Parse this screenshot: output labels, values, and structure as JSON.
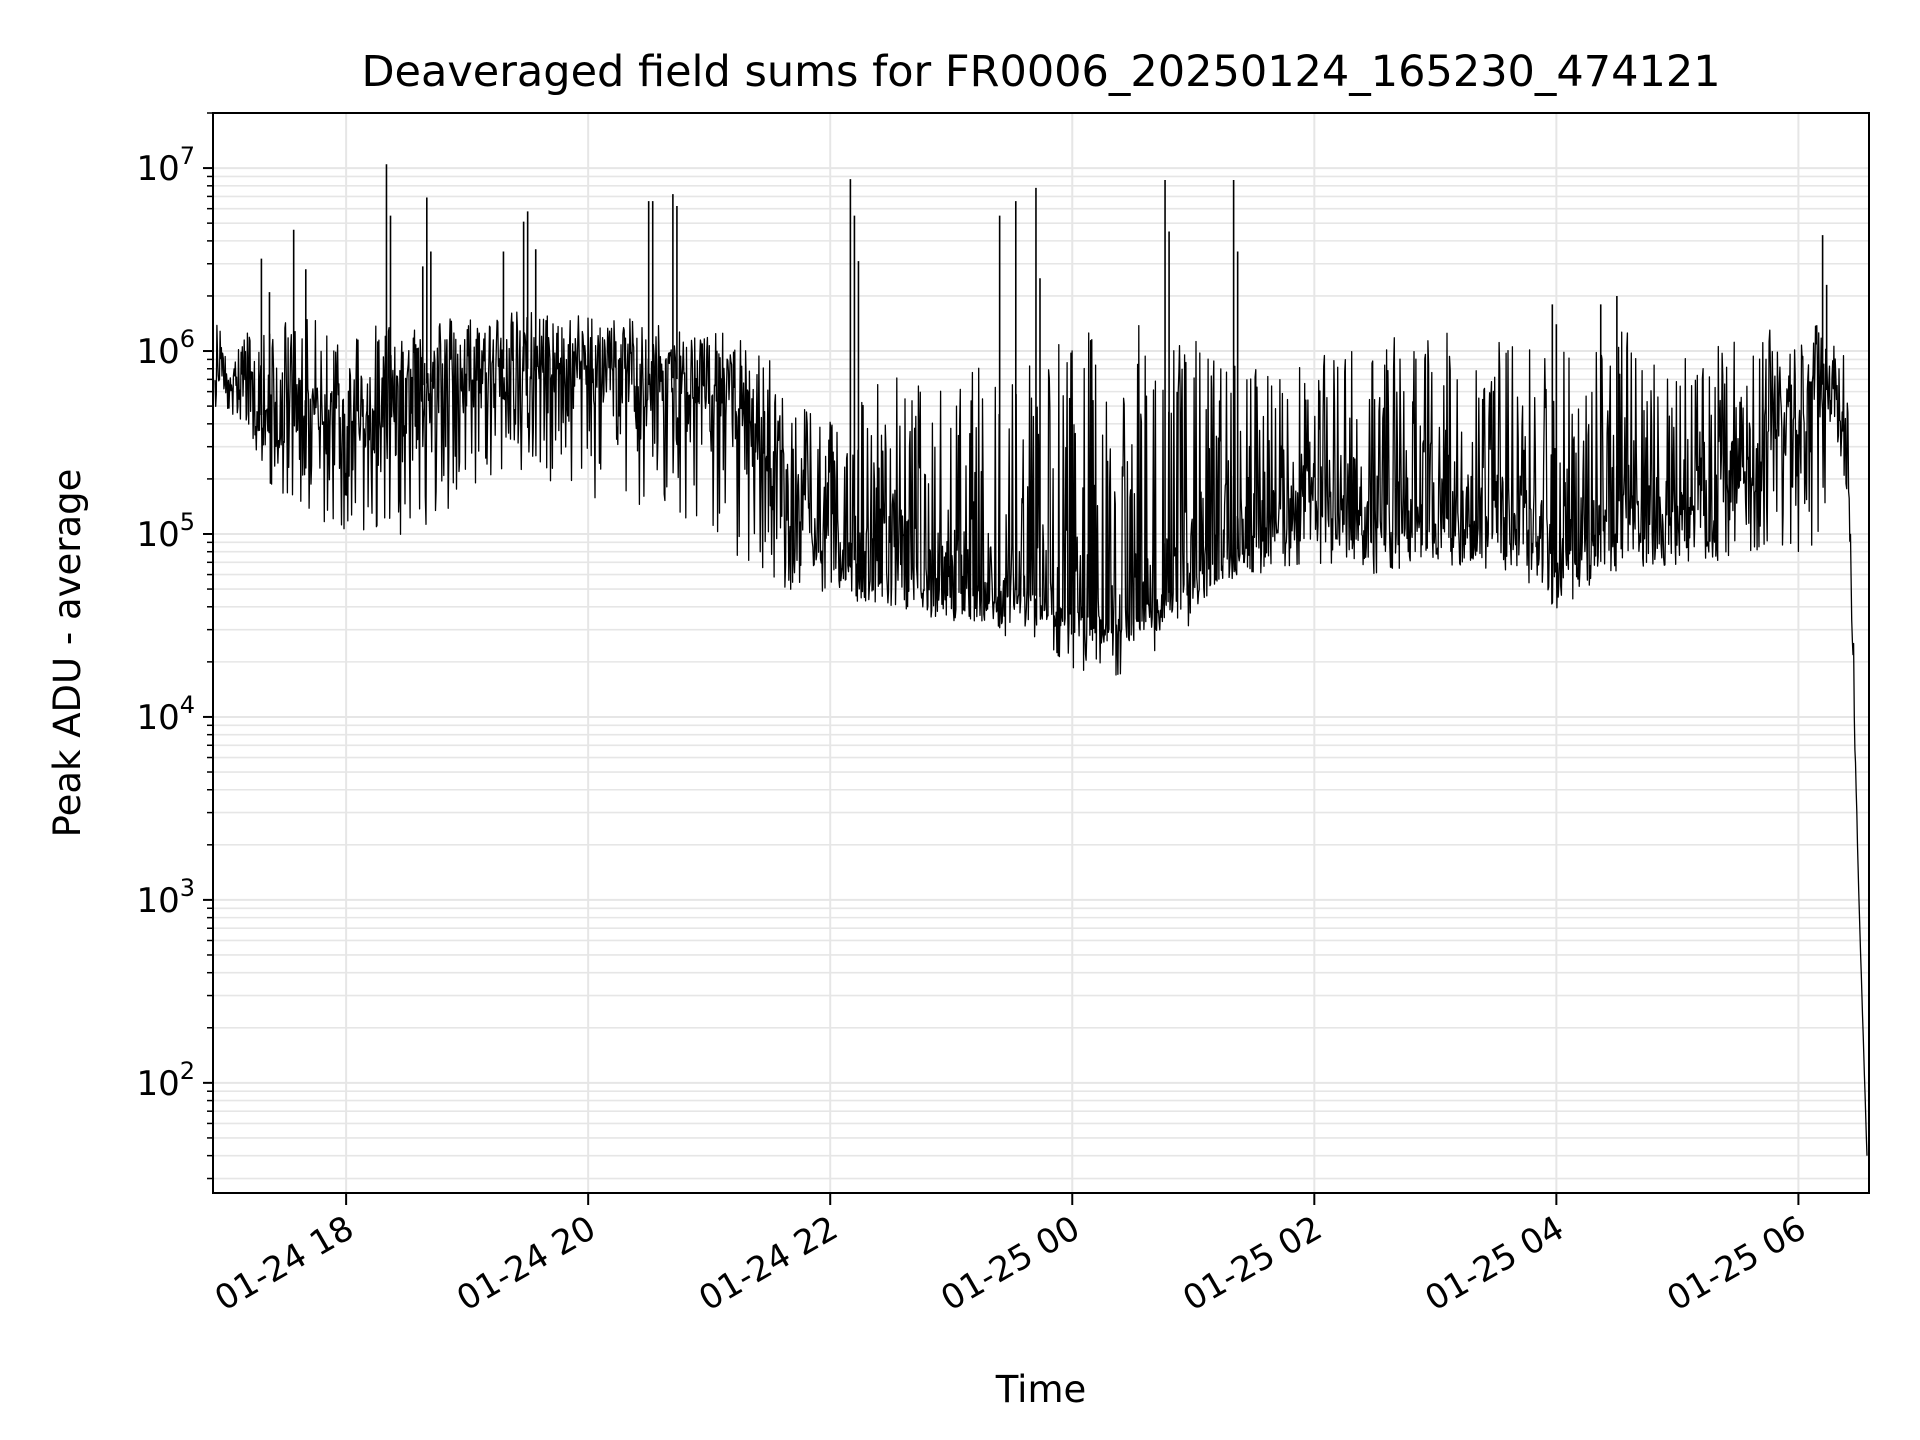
{
  "chart_data": {
    "type": "line",
    "title": "Deaveraged field sums for FR0006_20250124_165230_474121",
    "xlabel": "Time",
    "ylabel": "Peak ADU - average",
    "yscale": "log",
    "xlim": [
      "2025-01-24 16:54",
      "2025-01-25 06:35"
    ],
    "ylim": [
      25,
      20000000
    ],
    "grid": true,
    "line_color": "#000000",
    "grid_color": "#e6e6e6",
    "x_ticks": [
      {
        "t": "2025-01-24 18:00",
        "label": "01-24 18"
      },
      {
        "t": "2025-01-24 20:00",
        "label": "01-24 20"
      },
      {
        "t": "2025-01-24 22:00",
        "label": "01-24 22"
      },
      {
        "t": "2025-01-25 00:00",
        "label": "01-25 00"
      },
      {
        "t": "2025-01-25 02:00",
        "label": "01-25 02"
      },
      {
        "t": "2025-01-25 04:00",
        "label": "01-25 04"
      },
      {
        "t": "2025-01-25 06:00",
        "label": "01-25 06"
      }
    ],
    "y_ticks": [
      {
        "value": 100,
        "base": "10",
        "exp": "2"
      },
      {
        "value": 1000,
        "base": "10",
        "exp": "3"
      },
      {
        "value": 10000,
        "base": "10",
        "exp": "4"
      },
      {
        "value": 100000,
        "base": "10",
        "exp": "5"
      },
      {
        "value": 1000000,
        "base": "10",
        "exp": "6"
      },
      {
        "value": 10000000,
        "base": "10",
        "exp": "7"
      }
    ],
    "series": [
      {
        "x": [
          "2025-01-24 16:55",
          "2025-01-24 17:10",
          "2025-01-24 17:20",
          "2025-01-24 17:30",
          "2025-01-24 17:45",
          "2025-01-24 18:00",
          "2025-01-24 18:15",
          "2025-01-24 18:30",
          "2025-01-24 18:45",
          "2025-01-24 19:00",
          "2025-01-24 19:15",
          "2025-01-24 19:30",
          "2025-01-24 19:45",
          "2025-01-24 20:00",
          "2025-01-24 20:15",
          "2025-01-24 20:30",
          "2025-01-24 20:45",
          "2025-01-24 21:00",
          "2025-01-24 21:15",
          "2025-01-24 21:30",
          "2025-01-24 21:45",
          "2025-01-24 22:00",
          "2025-01-24 22:15",
          "2025-01-24 22:30",
          "2025-01-24 22:45",
          "2025-01-24 23:00",
          "2025-01-24 23:15",
          "2025-01-24 23:30",
          "2025-01-24 23:45",
          "2025-01-25 00:00",
          "2025-01-25 00:15",
          "2025-01-25 00:30",
          "2025-01-25 00:45",
          "2025-01-25 01:00",
          "2025-01-25 01:15",
          "2025-01-25 01:30",
          "2025-01-25 01:45",
          "2025-01-25 02:00",
          "2025-01-25 02:15",
          "2025-01-25 02:30",
          "2025-01-25 02:45",
          "2025-01-25 03:00",
          "2025-01-25 03:15",
          "2025-01-25 03:30",
          "2025-01-25 03:45",
          "2025-01-25 04:00",
          "2025-01-25 04:15",
          "2025-01-25 04:30",
          "2025-01-25 04:45",
          "2025-01-25 05:00",
          "2025-01-25 05:15",
          "2025-01-25 05:30",
          "2025-01-25 05:45",
          "2025-01-25 06:00",
          "2025-01-25 06:10",
          "2025-01-25 06:20",
          "2025-01-25 06:25",
          "2025-01-25 06:30",
          "2025-01-25 06:34"
        ],
        "y": [
          800000,
          700000,
          400000,
          500000,
          450000,
          400000,
          500000,
          600000,
          700000,
          750000,
          800000,
          800000,
          850000,
          800000,
          800000,
          750000,
          700000,
          600000,
          500000,
          250000,
          120000,
          80000,
          70000,
          90000,
          60000,
          60000,
          55000,
          50000,
          45000,
          40000,
          35000,
          40000,
          45000,
          60000,
          70000,
          100000,
          130000,
          150000,
          140000,
          120000,
          110000,
          120000,
          120000,
          130000,
          110000,
          70000,
          90000,
          120000,
          140000,
          130000,
          150000,
          200000,
          350000,
          600000,
          700000,
          500000,
          150000,
          1000,
          40
        ],
        "band_high": [
          1500000,
          1300000,
          1400000,
          1500000,
          1500000,
          1400000,
          1400000,
          1600000,
          1600000,
          1600000,
          1600000,
          1700000,
          1600000,
          1600000,
          1500000,
          1500000,
          1400000,
          1300000,
          1200000,
          900000,
          600000,
          500000,
          700000,
          800000,
          700000,
          600000,
          900000,
          1000000,
          1200000,
          1300000,
          1300000,
          1400000,
          1400000,
          1200000,
          900000,
          900000,
          800000,
          900000,
          1100000,
          1200000,
          1300000,
          1300000,
          1200000,
          1200000,
          1100000,
          1300000,
          1200000,
          1300000,
          1400000,
          1300000,
          1000000,
          1200000,
          1300000,
          1300000,
          1400000,
          1500000,
          600000,
          1000,
          40
        ],
        "band_low": [
          500000,
          400000,
          200000,
          150000,
          120000,
          100000,
          90000,
          100000,
          110000,
          150000,
          200000,
          200000,
          180000,
          150000,
          150000,
          130000,
          110000,
          90000,
          70000,
          50000,
          45000,
          50000,
          45000,
          40000,
          38000,
          35000,
          33000,
          32000,
          30000,
          28000,
          25000,
          26000,
          30000,
          45000,
          55000,
          60000,
          65000,
          70000,
          65000,
          60000,
          65000,
          70000,
          65000,
          60000,
          55000,
          45000,
          50000,
          60000,
          65000,
          65000,
          70000,
          75000,
          80000,
          80000,
          90000,
          300000,
          150000,
          1000,
          40
        ]
      }
    ],
    "spikes": [
      {
        "t": "2025-01-24 17:18",
        "value": 3200000
      },
      {
        "t": "2025-01-24 17:22",
        "value": 2100000
      },
      {
        "t": "2025-01-24 17:34",
        "value": 4600000
      },
      {
        "t": "2025-01-24 17:40",
        "value": 2800000
      },
      {
        "t": "2025-01-24 18:20",
        "value": 10500000
      },
      {
        "t": "2025-01-24 18:22",
        "value": 5500000
      },
      {
        "t": "2025-01-24 18:38",
        "value": 2900000
      },
      {
        "t": "2025-01-24 18:40",
        "value": 6900000
      },
      {
        "t": "2025-01-24 18:42",
        "value": 3500000
      },
      {
        "t": "2025-01-24 19:18",
        "value": 3500000
      },
      {
        "t": "2025-01-24 19:28",
        "value": 5100000
      },
      {
        "t": "2025-01-24 19:30",
        "value": 5800000
      },
      {
        "t": "2025-01-24 19:34",
        "value": 3600000
      },
      {
        "t": "2025-01-24 20:30",
        "value": 6600000
      },
      {
        "t": "2025-01-24 20:32",
        "value": 6600000
      },
      {
        "t": "2025-01-24 20:42",
        "value": 7200000
      },
      {
        "t": "2025-01-24 20:44",
        "value": 6200000
      },
      {
        "t": "2025-01-24 22:10",
        "value": 8700000
      },
      {
        "t": "2025-01-24 22:12",
        "value": 5500000
      },
      {
        "t": "2025-01-24 22:14",
        "value": 3100000
      },
      {
        "t": "2025-01-24 23:24",
        "value": 5500000
      },
      {
        "t": "2025-01-24 23:32",
        "value": 6600000
      },
      {
        "t": "2025-01-24 23:42",
        "value": 7800000
      },
      {
        "t": "2025-01-24 23:44",
        "value": 2500000
      },
      {
        "t": "2025-01-25 00:46",
        "value": 8600000
      },
      {
        "t": "2025-01-25 00:48",
        "value": 4500000
      },
      {
        "t": "2025-01-25 01:20",
        "value": 8600000
      },
      {
        "t": "2025-01-25 01:22",
        "value": 3500000
      },
      {
        "t": "2025-01-25 03:58",
        "value": 1800000
      },
      {
        "t": "2025-01-25 04:00",
        "value": 1400000
      },
      {
        "t": "2025-01-25 04:22",
        "value": 1800000
      },
      {
        "t": "2025-01-25 04:30",
        "value": 2000000
      },
      {
        "t": "2025-01-25 06:12",
        "value": 4300000
      },
      {
        "t": "2025-01-25 06:14",
        "value": 2300000
      }
    ]
  }
}
